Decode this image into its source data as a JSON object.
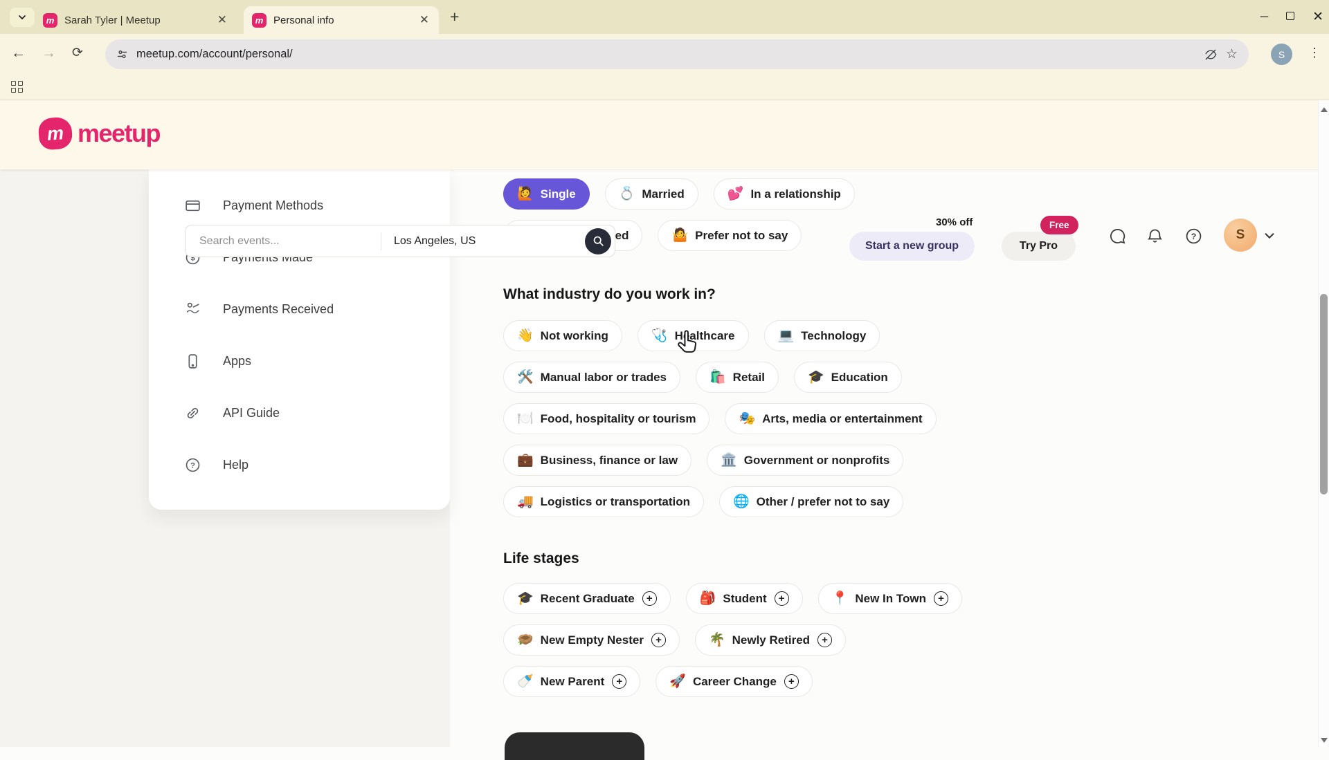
{
  "colors": {
    "brand-pink": "#e4256c",
    "free-badge": "#d2235f",
    "selected-pill": "#6757d8",
    "promo-btn-bg": "#eeebf9",
    "promo-btn-text": "#37315e",
    "search-btn-bg": "#272c38",
    "header-bg": "#fdf8e9",
    "chrome-bg": "#f9f4e2",
    "tabstrip-bg": "#e9e5c4"
  },
  "browser": {
    "tabs": [
      {
        "title": "Sarah Tyler | Meetup"
      },
      {
        "title": "Personal info"
      }
    ],
    "url": "meetup.com/account/personal/",
    "favicon_letter": "m",
    "profile_letter": "S"
  },
  "header": {
    "logo_text": "meetup",
    "search_placeholder": "Search events...",
    "location": "Los Angeles, US",
    "promo_text": "30% off",
    "start_group_label": "Start a new group",
    "try_pro_label": "Try Pro",
    "free_badge": "Free",
    "avatar_letter": "S"
  },
  "sidebar": {
    "items": [
      {
        "icon": "payment-card-icon",
        "label": "Payment Methods"
      },
      {
        "icon": "dollar-circle-icon",
        "label": "Payments Made"
      },
      {
        "icon": "payments-received-icon",
        "label": "Payments Received"
      },
      {
        "icon": "phone-icon",
        "label": "Apps"
      },
      {
        "icon": "link-icon",
        "label": "API Guide"
      },
      {
        "icon": "help-icon",
        "label": "Help"
      }
    ]
  },
  "main": {
    "relationship": {
      "rows": [
        [
          {
            "icon": "🙋",
            "label": "Single",
            "selected": true
          },
          {
            "icon": "💍",
            "label": "Married"
          },
          {
            "icon": "💕",
            "label": "In a relationship"
          }
        ],
        [
          {
            "icon": "💭",
            "label": "It's complicated"
          },
          {
            "icon": "🤷",
            "label": "Prefer not to say"
          }
        ]
      ]
    },
    "industry": {
      "heading": "What industry do you work in?",
      "rows": [
        [
          {
            "icon": "👋",
            "label": "Not working"
          },
          {
            "icon": "🩺",
            "label": "Healthcare"
          },
          {
            "icon": "💻",
            "label": "Technology"
          }
        ],
        [
          {
            "icon": "🛠️",
            "label": "Manual labor or trades"
          },
          {
            "icon": "🛍️",
            "label": "Retail"
          },
          {
            "icon": "🎓",
            "label": "Education"
          }
        ],
        [
          {
            "icon": "🍽️",
            "label": "Food, hospitality or tourism"
          },
          {
            "icon": "🎭",
            "label": "Arts, media or entertainment"
          }
        ],
        [
          {
            "icon": "💼",
            "label": "Business, finance or law"
          },
          {
            "icon": "🏛️",
            "label": "Government or nonprofits"
          }
        ],
        [
          {
            "icon": "🚚",
            "label": "Logistics or transportation"
          },
          {
            "icon": "🌐",
            "label": "Other / prefer not to say"
          }
        ]
      ]
    },
    "life_stages": {
      "heading": "Life stages",
      "rows": [
        [
          {
            "icon": "🎓",
            "label": "Recent Graduate",
            "addable": true
          },
          {
            "icon": "🎒",
            "label": "Student",
            "addable": true
          },
          {
            "icon": "📍",
            "label": "New In Town",
            "addable": true
          }
        ],
        [
          {
            "icon": "🪹",
            "label": "New Empty Nester",
            "addable": true
          },
          {
            "icon": "🌴",
            "label": "Newly Retired",
            "addable": true
          }
        ],
        [
          {
            "icon": "🍼",
            "label": "New Parent",
            "addable": true
          },
          {
            "icon": "🚀",
            "label": "Career Change",
            "addable": true
          }
        ]
      ]
    }
  }
}
